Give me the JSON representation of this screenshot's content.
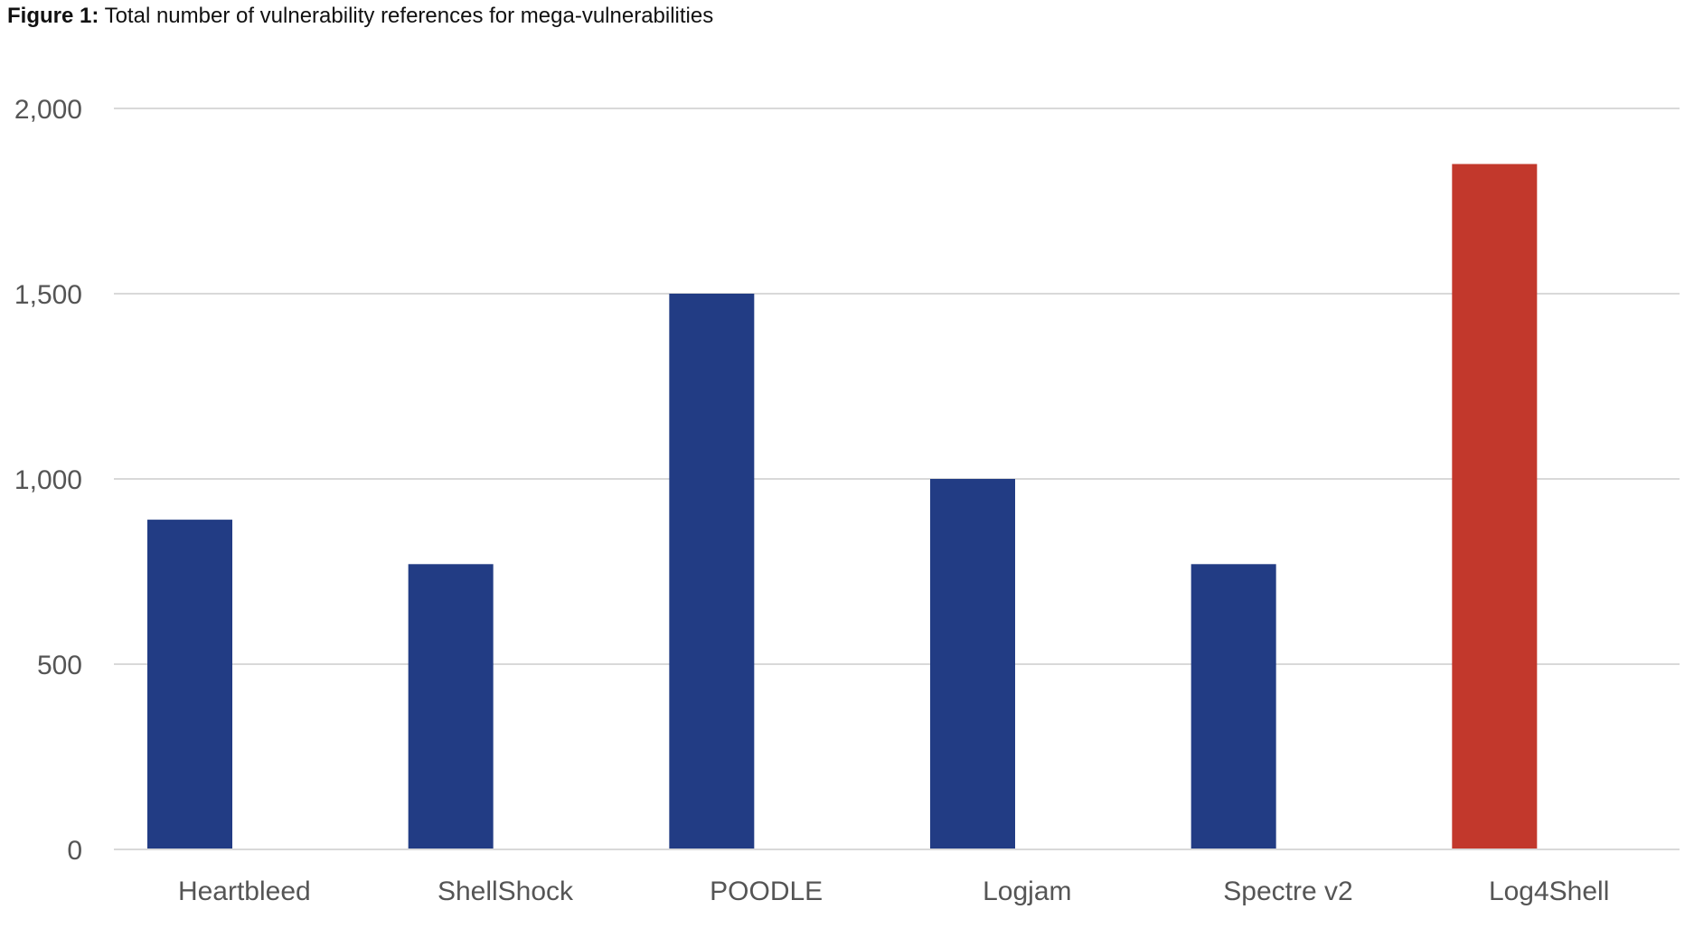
{
  "title": {
    "prefix": "Figure 1:",
    "text": " Total number of vulnerability references for mega-vulnerabilities"
  },
  "chart_data": {
    "type": "bar",
    "title": "Figure 1: Total number of vulnerability references for mega-vulnerabilities",
    "categories": [
      "Heartbleed",
      "ShellShock",
      "POODLE",
      "Logjam",
      "Spectre v2",
      "Log4Shell"
    ],
    "values": [
      890,
      770,
      1500,
      1000,
      770,
      1850
    ],
    "colors": [
      "#223C84",
      "#223C84",
      "#223C84",
      "#223C84",
      "#223C84",
      "#C2382C"
    ],
    "xlabel": "",
    "ylabel": "",
    "ylim": [
      0,
      2000
    ],
    "yticks": [
      0,
      500,
      1000,
      1500,
      2000
    ],
    "ytick_labels": [
      "0",
      "500",
      "1,000",
      "1,500",
      "2,000"
    ],
    "grid": true,
    "legend": "none"
  }
}
